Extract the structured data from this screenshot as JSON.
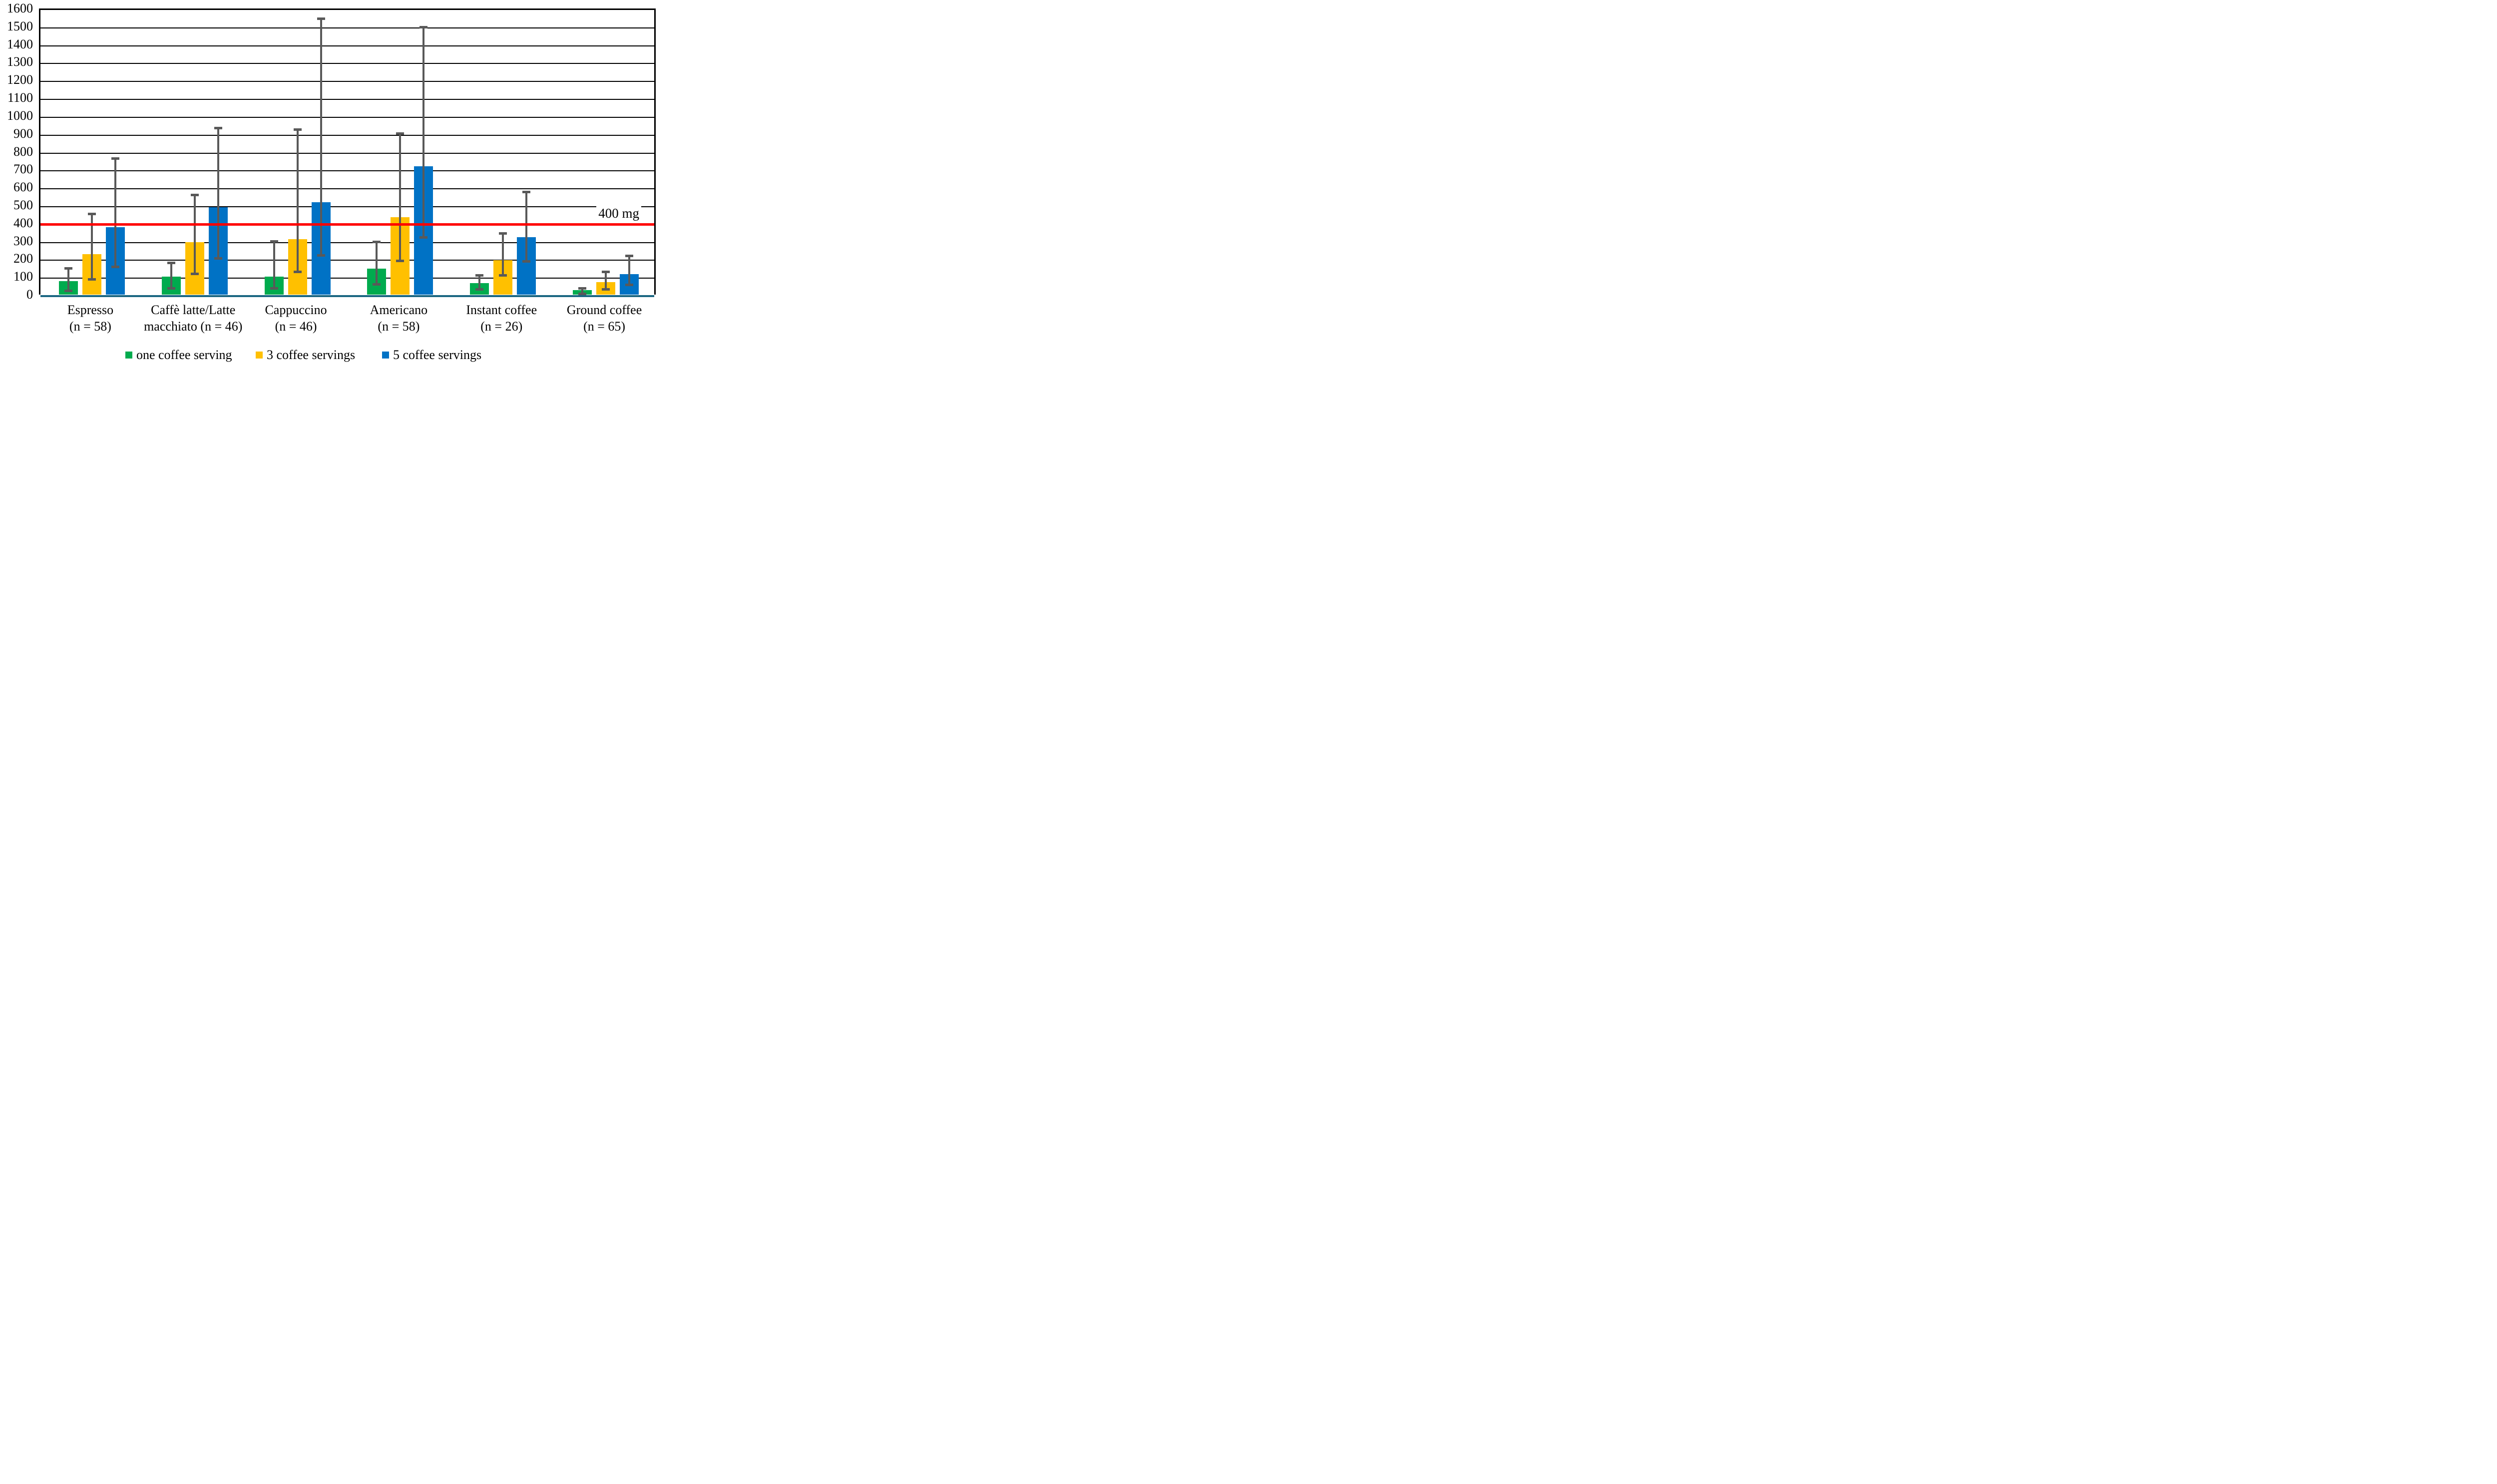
{
  "chart_data": {
    "type": "bar",
    "title": "",
    "xlabel": "",
    "ylabel": "",
    "ylim": [
      0,
      1600
    ],
    "ytick_step": 100,
    "ytick_labels": [
      "0",
      "100",
      "200",
      "300",
      "400",
      "500",
      "600",
      "700",
      "800",
      "900",
      "1000",
      "1100",
      "1200",
      "1300",
      "1400",
      "1500",
      "1600"
    ],
    "grid": true,
    "legend_position": "bottom",
    "categories": [
      {
        "label": "Espresso",
        "sub": "(n = 58)"
      },
      {
        "label": "Caffè latte/Latte",
        "sub": "macchiato (n = 46)"
      },
      {
        "label": "Cappuccino",
        "sub": "(n = 46)"
      },
      {
        "label": "Americano",
        "sub": "(n = 58)"
      },
      {
        "label": "Instant coffee",
        "sub": "(n = 26)"
      },
      {
        "label": "Ground coffee",
        "sub": "(n = 65)"
      }
    ],
    "series": [
      {
        "name": "one coffee serving",
        "color": "#00AB4E",
        "values": [
          75,
          100,
          101,
          145,
          65,
          24
        ],
        "error_low": [
          30,
          45,
          45,
          68,
          40,
          13
        ],
        "error_high": [
          155,
          188,
          307,
          303,
          117,
          46
        ]
      },
      {
        "name": "3 coffee servings",
        "color": "#FFC000",
        "values": [
          225,
          292,
          310,
          432,
          193,
          69
        ],
        "error_low": [
          95,
          127,
          136,
          198,
          117,
          39
        ],
        "error_high": [
          460,
          567,
          932,
          911,
          351,
          137
        ]
      },
      {
        "name": "5 coffee servings",
        "color": "#0072C5",
        "values": [
          378,
          489,
          516,
          719,
          322,
          115
        ],
        "error_low": [
          165,
          213,
          228,
          330,
          196,
          65
        ],
        "error_high": [
          770,
          941,
          1552,
          1506,
          584,
          227
        ]
      }
    ],
    "reference_line": {
      "value": 400,
      "label": "400 mg",
      "color": "#FF0000"
    },
    "error_bar_color": "#595959",
    "baseline_axis_color": "#1B6782",
    "gridline_color": "#000000"
  }
}
